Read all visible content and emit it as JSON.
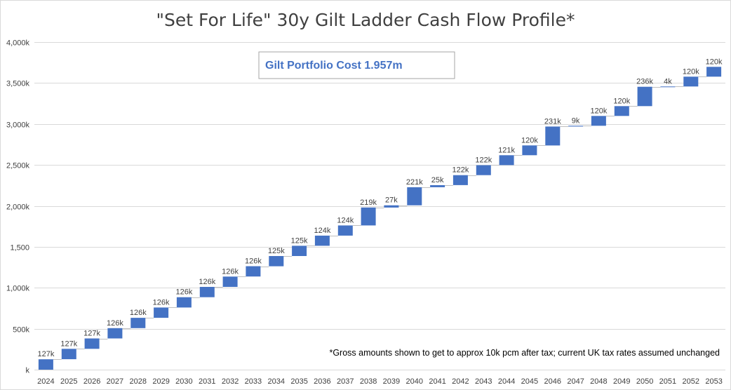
{
  "chart_data": {
    "type": "waterfall",
    "title": "\"Set For Life\" 30y Gilt Ladder Cash Flow Profile*",
    "xlabel": "",
    "ylabel": "",
    "ylim": [
      0,
      4000
    ],
    "grid": true,
    "legend": "none",
    "y_ticks": [
      {
        "value": 0,
        "label": "k"
      },
      {
        "value": 500,
        "label": "500k"
      },
      {
        "value": 1000,
        "label": "1,000k"
      },
      {
        "value": 1500,
        "label": "1,500"
      },
      {
        "value": 2000,
        "label": "2,000k"
      },
      {
        "value": 2500,
        "label": "2,500k"
      },
      {
        "value": 3000,
        "label": "3,000k"
      },
      {
        "value": 3500,
        "label": "3,500k"
      },
      {
        "value": 4000,
        "label": "4,000k"
      }
    ],
    "categories": [
      "2024",
      "2025",
      "2026",
      "2027",
      "2028",
      "2029",
      "2030",
      "2031",
      "2032",
      "2033",
      "2034",
      "2035",
      "2036",
      "2037",
      "2038",
      "2039",
      "2040",
      "2041",
      "2042",
      "2043",
      "2044",
      "2045",
      "2046",
      "2047",
      "2048",
      "2049",
      "2050",
      "2051",
      "2052",
      "2053"
    ],
    "values": [
      127,
      127,
      127,
      126,
      126,
      126,
      126,
      126,
      126,
      126,
      125,
      125,
      124,
      124,
      219,
      27,
      221,
      25,
      122,
      122,
      121,
      120,
      231,
      9,
      120,
      120,
      236,
      4,
      120,
      120
    ],
    "data_labels": [
      "127k",
      "127k",
      "127k",
      "126k",
      "126k",
      "126k",
      "126k",
      "126k",
      "126k",
      "126k",
      "125k",
      "125k",
      "124k",
      "124k",
      "219k",
      "27k",
      "221k",
      "25k",
      "122k",
      "122k",
      "121k",
      "120k",
      "231k",
      "9k",
      "120k",
      "120k",
      "236k",
      "4k",
      "120k",
      "120k"
    ],
    "bar_color": "#4472C4",
    "annotation_box": "Gilt Portfolio Cost 1.957m",
    "annotation_box_color": "#4472C4",
    "footnote": "*Gross amounts shown to get to approx 10k pcm after tax; current UK tax rates assumed unchanged"
  }
}
